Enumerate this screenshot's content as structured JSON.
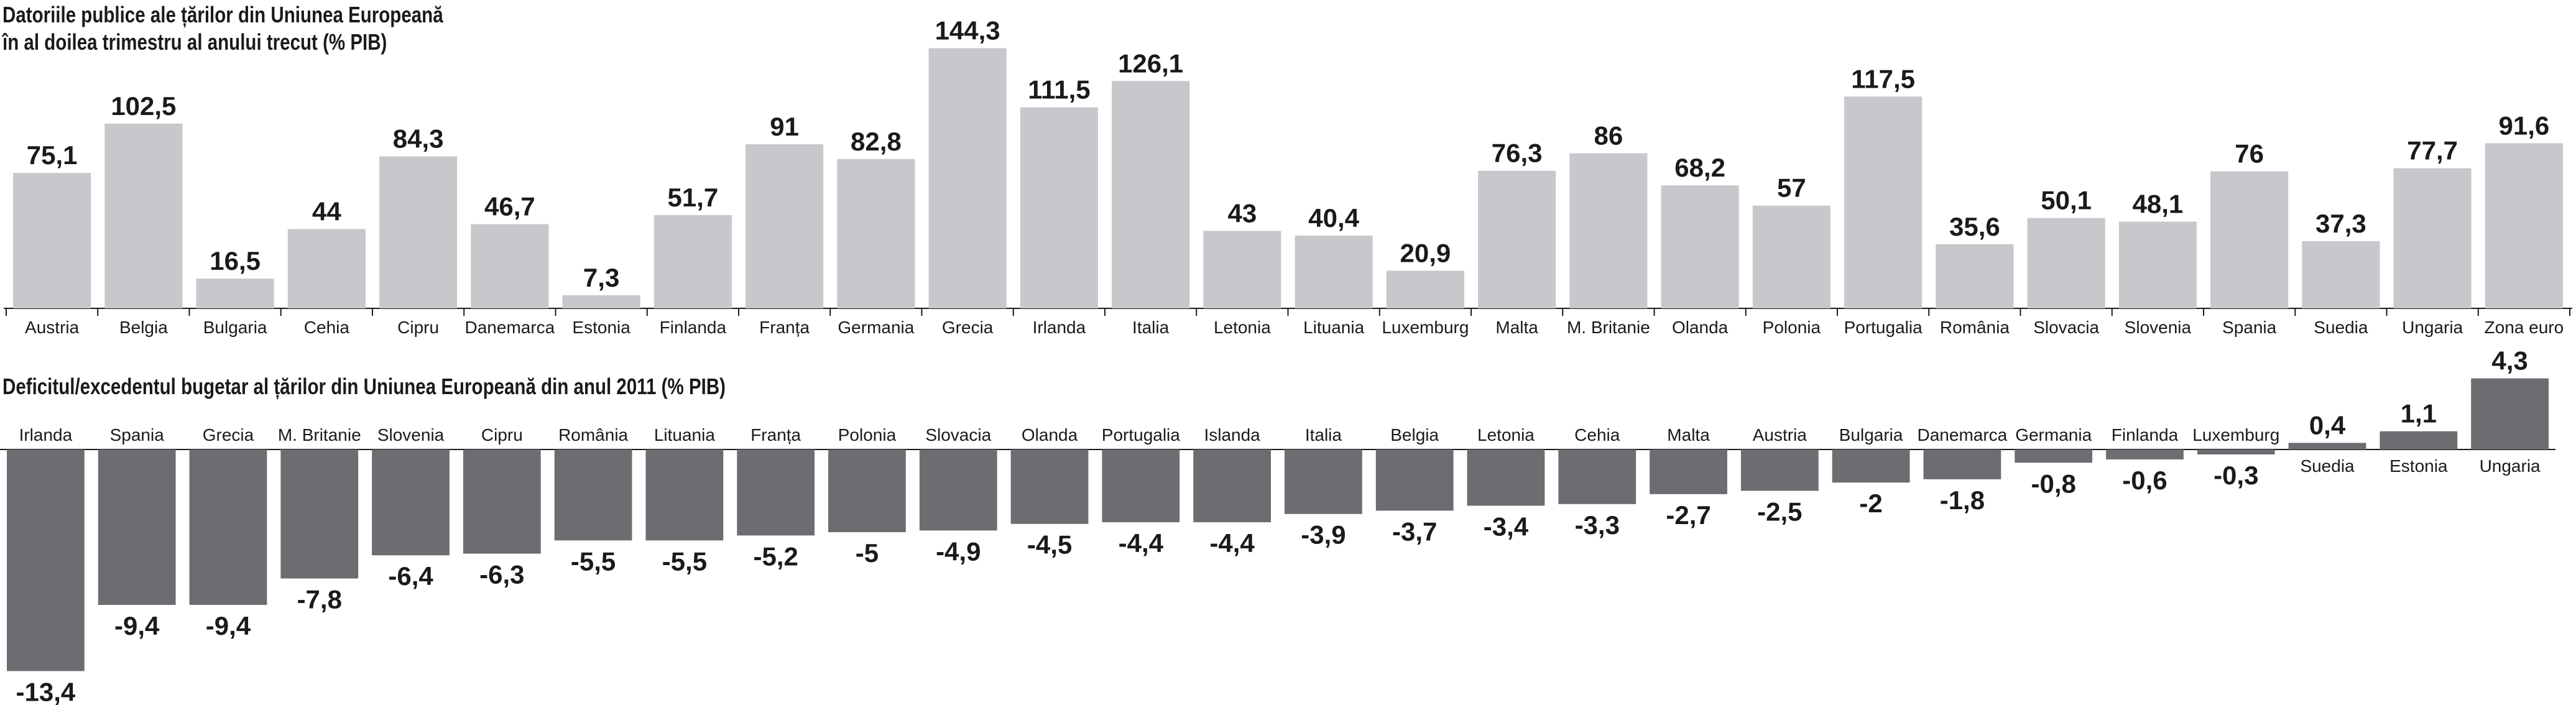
{
  "titles": {
    "debt_line1": "Datoriile publice ale țărilor din Uniunea Europeană",
    "debt_line2": "în al doilea trimestru al anului trecut (% PIB)",
    "deficit": "Deficitul/excedentul bugetar al țărilor din Uniunea Europeană din anul 2011 (% PIB)"
  },
  "colors": {
    "debt_bar": "#c8c7cc",
    "deficit_bar": "#6d6c71",
    "text": "#1a1a1a",
    "axis": "#1a1a1a"
  },
  "chart_data": [
    {
      "type": "bar",
      "title": "Datoriile publice ale țărilor din Uniunea Europeană în al doilea trimestru al anului trecut (% PIB)",
      "categories": [
        "Austria",
        "Belgia",
        "Bulgaria",
        "Cehia",
        "Cipru",
        "Danemarca",
        "Estonia",
        "Finlanda",
        "Franța",
        "Germania",
        "Grecia",
        "Irlanda",
        "Italia",
        "Letonia",
        "Lituania",
        "Luxemburg",
        "Malta",
        "M. Britanie",
        "Olanda",
        "Polonia",
        "Portugalia",
        "România",
        "Slovacia",
        "Slovenia",
        "Spania",
        "Suedia",
        "Ungaria",
        "Zona euro"
      ],
      "values": [
        75.1,
        102.5,
        16.5,
        44,
        84.3,
        46.7,
        7.3,
        51.7,
        91,
        82.8,
        144.3,
        111.5,
        126.1,
        43,
        40.4,
        20.9,
        76.3,
        86,
        68.2,
        57,
        117.5,
        35.6,
        50.1,
        48.1,
        76,
        37.3,
        77.7,
        91.6
      ],
      "value_labels": [
        "75,1",
        "102,5",
        "16,5",
        "44",
        "84,3",
        "46,7",
        "7,3",
        "51,7",
        "91",
        "82,8",
        "144,3",
        "111,5",
        "126,1",
        "43",
        "40,4",
        "20,9",
        "76,3",
        "86",
        "68,2",
        "57",
        "117,5",
        "35,6",
        "50,1",
        "48,1",
        "76",
        "37,3",
        "77,7",
        "91,6"
      ],
      "ylim": [
        0,
        150
      ]
    },
    {
      "type": "bar",
      "title": "Deficitul/excedentul bugetar al țărilor din Uniunea Europeană din anul 2011 (% PIB)",
      "categories": [
        "Irlanda",
        "Spania",
        "Grecia",
        "M. Britanie",
        "Slovenia",
        "Cipru",
        "România",
        "Lituania",
        "Franța",
        "Polonia",
        "Slovacia",
        "Olanda",
        "Portugalia",
        "Islanda",
        "Italia",
        "Belgia",
        "Letonia",
        "Cehia",
        "Malta",
        "Austria",
        "Bulgaria",
        "Danemarca",
        "Germania",
        "Finlanda",
        "Luxemburg",
        "Suedia",
        "Estonia",
        "Ungaria"
      ],
      "values": [
        -13.4,
        -9.4,
        -9.4,
        -7.8,
        -6.4,
        -6.3,
        -5.5,
        -5.5,
        -5.2,
        -5,
        -4.9,
        -4.5,
        -4.4,
        -4.4,
        -3.9,
        -3.7,
        -3.4,
        -3.3,
        -2.7,
        -2.5,
        -2,
        -1.8,
        -0.8,
        -0.6,
        -0.3,
        0.4,
        1.1,
        4.3
      ],
      "value_labels": [
        "-13,4",
        "-9,4",
        "-9,4",
        "-7,8",
        "-6,4",
        "-6,3",
        "-5,5",
        "-5,5",
        "-5,2",
        "-5",
        "-4,9",
        "-4,5",
        "-4,4",
        "-4,4",
        "-3,9",
        "-3,7",
        "-3,4",
        "-3,3",
        "-2,7",
        "-2,5",
        "-2",
        "-1,8",
        "-0,8",
        "-0,6",
        "-0,3",
        "0,4",
        "1,1",
        "4,3"
      ],
      "ylim": [
        -14,
        5
      ]
    }
  ]
}
